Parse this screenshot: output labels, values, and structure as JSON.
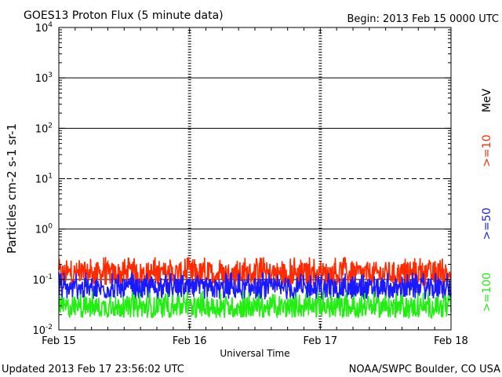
{
  "header": {
    "title": "GOES13 Proton Flux (5 minute data)",
    "begin": "Begin: 2013 Feb 15 0000 UTC"
  },
  "footer": {
    "updated": "Updated 2013 Feb 17 23:56:02 UTC",
    "credit": "NOAA/SWPC Boulder, CO USA"
  },
  "legend": {
    "unit": "MeV",
    "items": [
      {
        "label": ">=10",
        "color": "#ff2a00"
      },
      {
        "label": ">=50",
        "color": "#1a1aff"
      },
      {
        "label": ">=100",
        "color": "#22ee11"
      }
    ]
  },
  "chart_data": {
    "type": "line",
    "yscale": "log",
    "ylim": [
      0.01,
      10000
    ],
    "xlim": [
      "2013-02-15",
      "2013-02-18"
    ],
    "xlabel": "Universal Time",
    "ylabel": "Particles cm-2 s-1 sr-1",
    "xticks": [
      "Feb 15",
      "Feb 16",
      "Feb 17",
      "Feb 18"
    ],
    "yticks": [
      0.01,
      0.1,
      1,
      10,
      100,
      1000,
      10000
    ],
    "series": [
      {
        "name": ">=10",
        "color": "#ff2a00",
        "baseline": 0.13,
        "peak": 0.28,
        "noise": 0.25
      },
      {
        "name": ">=50",
        "color": "#1a1aff",
        "baseline": 0.065,
        "peak": 0.14,
        "noise": 0.22
      },
      {
        "name": ">=100",
        "color": "#22ee11",
        "baseline": 0.028,
        "peak": 0.06,
        "noise": 0.22
      }
    ]
  }
}
